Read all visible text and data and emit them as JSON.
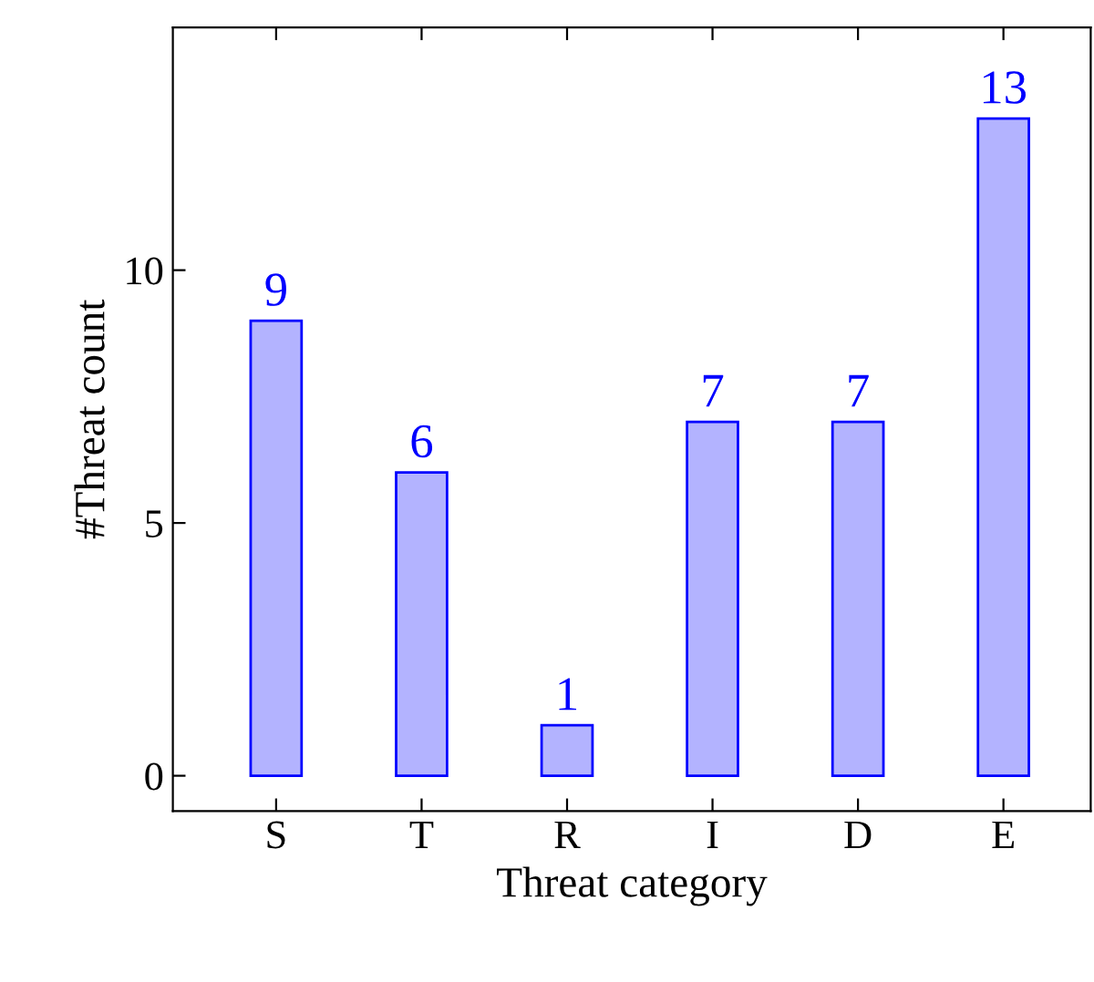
{
  "chart_data": {
    "type": "bar",
    "xlabel": "Threat category",
    "ylabel": "#Threat count",
    "categories": [
      "S",
      "T",
      "R",
      "I",
      "D",
      "E"
    ],
    "series": [
      {
        "color": "#b3b3ff",
        "values": [
          9,
          6,
          1,
          7,
          7,
          13
        ]
      }
    ],
    "ylim": [
      -0.7,
      14.8
    ],
    "yticks": [
      0,
      5,
      10
    ],
    "data_labels": true,
    "grid": false,
    "legend": false
  }
}
